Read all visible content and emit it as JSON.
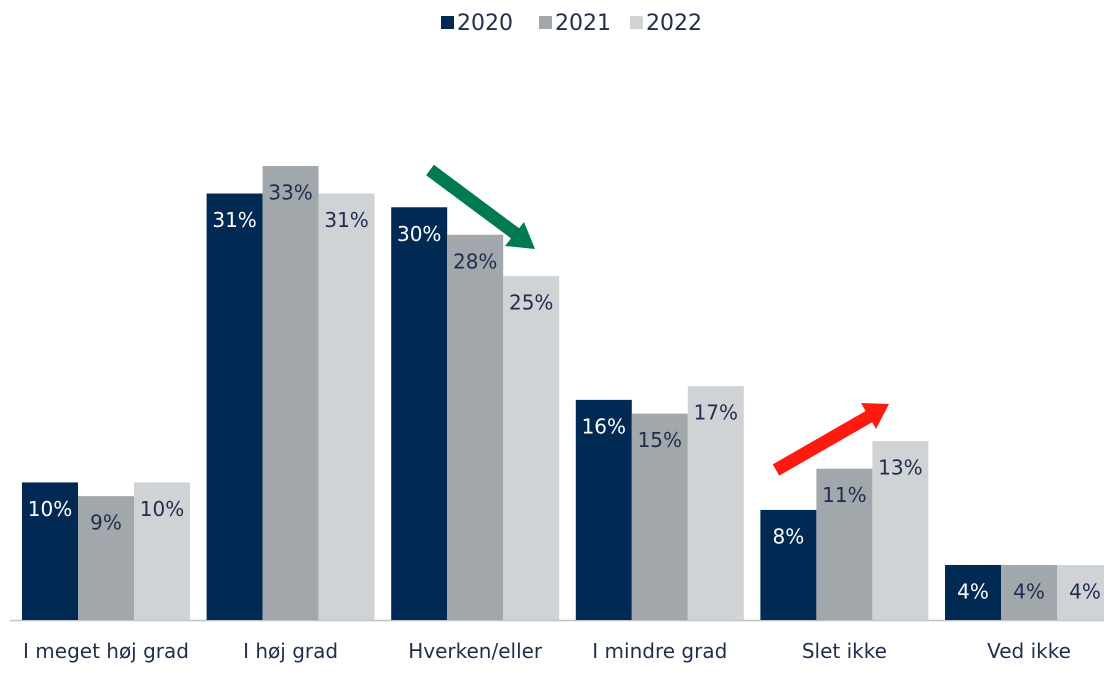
{
  "chart_data": {
    "type": "bar",
    "categories": [
      "I meget høj grad",
      "I høj grad",
      "Hverken/eller",
      "I mindre grad",
      "Slet ikke",
      "Ved ikke"
    ],
    "series": [
      {
        "name": "2020",
        "color": "#002a54",
        "values": [
          10,
          31,
          30,
          16,
          8,
          4
        ],
        "value_labels": [
          "10%",
          "31%",
          "30%",
          "16%",
          "8%",
          "4%"
        ]
      },
      {
        "name": "2021",
        "color": "#a1a7ab",
        "values": [
          9,
          33,
          28,
          15,
          11,
          4
        ],
        "value_labels": [
          "9%",
          "33%",
          "28%",
          "15%",
          "11%",
          "4%"
        ]
      },
      {
        "name": "2022",
        "color": "#d0d3d5",
        "values": [
          10,
          31,
          25,
          17,
          13,
          4
        ],
        "value_labels": [
          "10%",
          "31%",
          "25%",
          "17%",
          "13%",
          "4%"
        ]
      }
    ],
    "legend": "top"
  }
}
